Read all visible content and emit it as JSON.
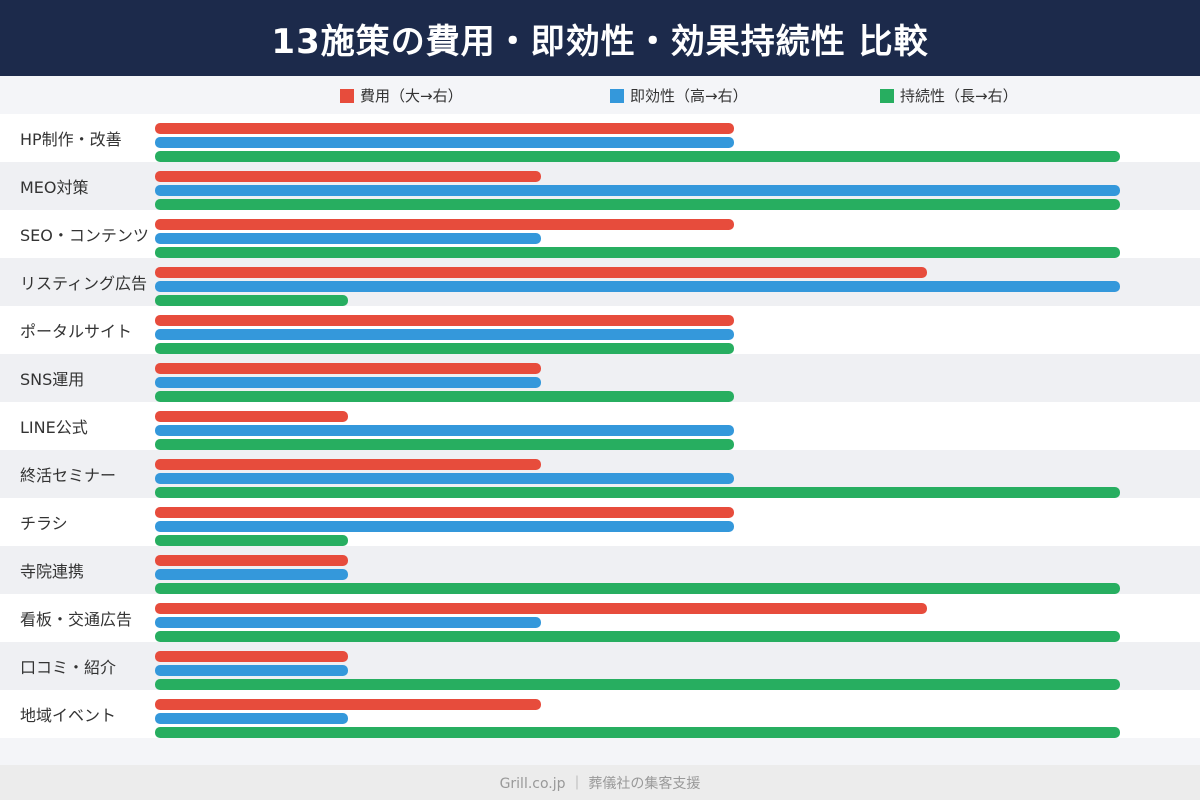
{
  "header": {
    "title": "13施策の費用・即効性・効果持続性 比較"
  },
  "legend": [
    {
      "label": "費用（大→右）",
      "color": "#e74c3c"
    },
    {
      "label": "即効性（高→右）",
      "color": "#3498db"
    },
    {
      "label": "持続性（長→右）",
      "color": "#27ae60"
    }
  ],
  "footer": {
    "text": "Grill.co.jp ｜ 葬儀社の集客支援"
  },
  "chart_data": {
    "type": "bar",
    "orientation": "horizontal",
    "title": "13施策の費用・即効性・効果持続性 比較",
    "categories": [
      "HP制作・改善",
      "MEO対策",
      "SEO・コンテンツ",
      "リスティング広告",
      "ポータルサイト",
      "SNS運用",
      "LINE公式",
      "終活セミナー",
      "チラシ",
      "寺院連携",
      "看板・交通広告",
      "口コミ・紹介",
      "地域イベント"
    ],
    "series": [
      {
        "name": "費用（大→右）",
        "color": "#e74c3c",
        "values": [
          3,
          2,
          3,
          4,
          3,
          2,
          1,
          2,
          3,
          1,
          4,
          1,
          2
        ]
      },
      {
        "name": "即効性（高→右）",
        "color": "#3498db",
        "values": [
          3,
          5,
          2,
          5,
          3,
          2,
          3,
          3,
          3,
          1,
          2,
          1,
          1
        ]
      },
      {
        "name": "持続性（長→右）",
        "color": "#27ae60",
        "values": [
          5,
          5,
          5,
          1,
          3,
          3,
          3,
          5,
          1,
          5,
          5,
          5,
          5
        ]
      }
    ],
    "xlim": [
      0,
      5
    ],
    "xlabel": "",
    "ylabel": "",
    "grid": false,
    "legend_position": "top"
  }
}
